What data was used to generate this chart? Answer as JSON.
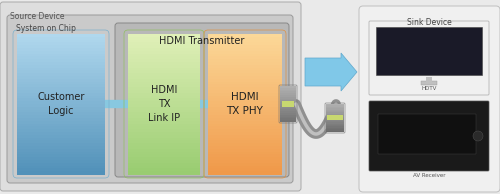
{
  "source_device_label": "Source Device",
  "soc_label": "System on Chip",
  "hdmi_tx_label": "HDMI Transmitter",
  "customer_logic_label": "Customer\nLogic",
  "hdmi_tx_link_label": "HDMI\nTX\nLink IP",
  "hdmi_tx_phy_label": "HDMI\nTX PHY",
  "sink_device_label": "Sink Device",
  "hdtv_label": "HDTV",
  "av_receiver_label": "AV Receiver",
  "bg_color": "#eaeaea",
  "source_device_bg": "#dcdcdc",
  "soc_bg": "#cccccc",
  "htx_bg": "#c0c0c0",
  "cl_color_top": "#a8d4e8",
  "cl_color_bottom": "#5a9ec8",
  "link_color_top": "#d8f0b0",
  "link_color_bottom": "#a0cc70",
  "phy_color_top": "#fce0a8",
  "phy_color_bottom": "#f0a848",
  "arrow_color": "#80c8e8",
  "arrow_edge": "#60a8cc",
  "connect_line_color": "#88c8e0",
  "sink_bg": "#f0f0f0",
  "sink_edge": "#c0c0c0",
  "cable_color": "#909090",
  "cable_highlight": "#c0c0c0",
  "conn_color": "#909090",
  "conn_edge": "#707070",
  "tv_body_color": "#e8e8e8",
  "tv_screen_color": "#1a1a2e",
  "av_body_color": "#1e1e1e",
  "av_display_color": "#0a0a0a"
}
